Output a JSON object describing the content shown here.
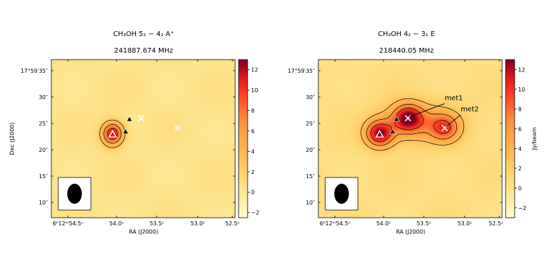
{
  "chart_data": [
    {
      "type": "heatmap",
      "title_line1": "CH₃OH    5₂ − 4₂   A⁺",
      "title_line2": "241887.674 MHz",
      "xlabel": "RA (J2000)",
      "ylabel": "Dec (J2000)",
      "x_ticks": [
        "6ʰ12ᵐ54.5ˢ",
        "54.0ˢ",
        "53.5ˢ",
        "53.0ˢ",
        "52.5ˢ"
      ],
      "y_ticks": [
        "17°59′35″",
        "30″",
        "25″",
        "20″",
        "15″",
        "10″"
      ],
      "colorbar": {
        "label": "",
        "min": -2.5,
        "max": 13,
        "ticks": [
          "12",
          "10",
          "8",
          "6",
          "4",
          "2",
          "0",
          "−2"
        ],
        "tick_values": [
          12,
          10,
          8,
          6,
          4,
          2,
          0,
          -2
        ]
      },
      "xlim_s": [
        54.8,
        52.4
      ],
      "ylim_arcsec": [
        7,
        37.5
      ],
      "emission_peaks": [
        {
          "ra_s": 54.0,
          "dec_arcsec": 23.2,
          "peak": 11,
          "sigma_ra_s": 0.1,
          "sigma_dec_arcsec": 1.6
        }
      ],
      "contour_levels": [
        3,
        6,
        9
      ],
      "markers": [
        {
          "type": "open-triangle",
          "ra_s": 54.0,
          "dec_arcsec": 23.1
        },
        {
          "type": "filled-triangle",
          "ra_s": 53.78,
          "dec_arcsec": 26.0
        },
        {
          "type": "filled-triangle",
          "ra_s": 53.83,
          "dec_arcsec": 23.6
        },
        {
          "type": "cross",
          "ra_s": 53.63,
          "dec_arcsec": 26.2,
          "label": ""
        },
        {
          "type": "cross",
          "ra_s": 53.15,
          "dec_arcsec": 24.3,
          "label": ""
        }
      ],
      "beam": {
        "shape": "ellipse"
      }
    },
    {
      "type": "heatmap",
      "title_line1": "CH₃OH    4₂ − 3₁   E",
      "title_line2": "218440.05 MHz",
      "xlabel": "RA (J2000)",
      "ylabel": "",
      "x_ticks": [
        "6ʰ12ᵐ54.5ˢ",
        "54.0ˢ",
        "53.5ˢ",
        "53.0ˢ",
        "52.5ˢ"
      ],
      "y_ticks": [
        "17°59′35″",
        "30″",
        "25″",
        "20″",
        "15″",
        "10″"
      ],
      "colorbar": {
        "label": "Jy/beam",
        "min": -3,
        "max": 13,
        "ticks": [
          "12",
          "10",
          "8",
          "6",
          "4",
          "2",
          "0",
          "−2"
        ],
        "tick_values": [
          12,
          10,
          8,
          6,
          4,
          2,
          0,
          -2
        ]
      },
      "xlim_s": [
        54.8,
        52.4
      ],
      "ylim_arcsec": [
        7,
        37.5
      ],
      "emission_peaks": [
        {
          "ra_s": 54.0,
          "dec_arcsec": 23.2,
          "peak": 11.5,
          "sigma_ra_s": 0.13,
          "sigma_dec_arcsec": 1.8
        },
        {
          "ra_s": 53.63,
          "dec_arcsec": 26.2,
          "peak": 10,
          "sigma_ra_s": 0.13,
          "sigma_dec_arcsec": 1.8
        },
        {
          "ra_s": 53.15,
          "dec_arcsec": 24.3,
          "peak": 7,
          "sigma_ra_s": 0.14,
          "sigma_dec_arcsec": 1.9
        },
        {
          "ra_s": 53.5,
          "dec_arcsec": 25.5,
          "peak": 5,
          "sigma_ra_s": 0.35,
          "sigma_dec_arcsec": 2.8
        }
      ],
      "contour_levels": [
        3,
        6,
        9
      ],
      "markers": [
        {
          "type": "open-triangle",
          "ra_s": 54.0,
          "dec_arcsec": 23.1
        },
        {
          "type": "filled-triangle",
          "ra_s": 53.78,
          "dec_arcsec": 26.0
        },
        {
          "type": "filled-triangle",
          "ra_s": 53.83,
          "dec_arcsec": 23.6
        },
        {
          "type": "cross",
          "ra_s": 53.63,
          "dec_arcsec": 26.2,
          "label": "met1"
        },
        {
          "type": "cross",
          "ra_s": 53.15,
          "dec_arcsec": 24.3,
          "label": "met2"
        }
      ],
      "beam": {
        "shape": "ellipse"
      }
    }
  ]
}
